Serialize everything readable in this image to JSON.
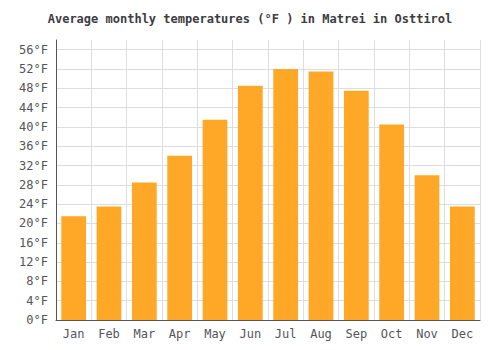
{
  "chart_data": {
    "type": "bar",
    "title": "Average monthly temperatures (°F ) in Matrei in Osttirol",
    "categories": [
      "Jan",
      "Feb",
      "Mar",
      "Apr",
      "May",
      "Jun",
      "Jul",
      "Aug",
      "Sep",
      "Oct",
      "Nov",
      "Dec"
    ],
    "values": [
      21.5,
      23.5,
      28.5,
      34.0,
      41.5,
      48.5,
      52.0,
      51.5,
      47.5,
      40.5,
      30.0,
      23.5
    ],
    "color": "#FFA726",
    "ylim": [
      0,
      58
    ],
    "yticks": [
      {
        "value": 0,
        "label": "0°F"
      },
      {
        "value": 4,
        "label": "4°F"
      },
      {
        "value": 8,
        "label": "8°F"
      },
      {
        "value": 12,
        "label": "12°F"
      },
      {
        "value": 16,
        "label": "16°F"
      },
      {
        "value": 20,
        "label": "20°F"
      },
      {
        "value": 24,
        "label": "24°F"
      },
      {
        "value": 28,
        "label": "28°F"
      },
      {
        "value": 32,
        "label": "32°F"
      },
      {
        "value": 36,
        "label": "36°F"
      },
      {
        "value": 40,
        "label": "40°F"
      },
      {
        "value": 44,
        "label": "44°F"
      },
      {
        "value": 48,
        "label": "48°F"
      },
      {
        "value": 52,
        "label": "52°F"
      },
      {
        "value": 56,
        "label": "56°F"
      }
    ],
    "grid": true
  }
}
